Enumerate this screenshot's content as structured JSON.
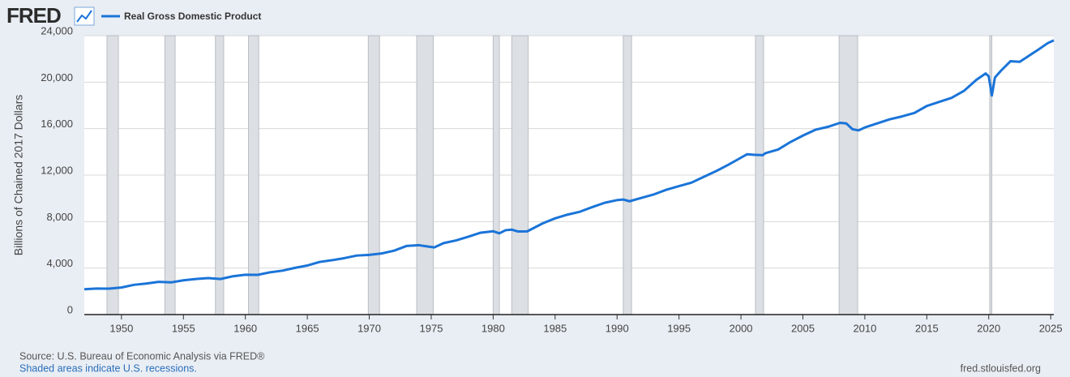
{
  "header": {
    "logo": "FRED"
  },
  "chart_data": {
    "type": "line",
    "y_axis_label": "Billions of Chained 2017 Dollars",
    "x": [
      1947,
      1948,
      1949,
      1950,
      1951,
      1952,
      1953,
      1954,
      1955,
      1956,
      1957,
      1958,
      1959,
      1960,
      1961,
      1962,
      1963,
      1964,
      1965,
      1966,
      1967,
      1968,
      1969,
      1970,
      1971,
      1972,
      1973,
      1974,
      1974.75,
      1975.25,
      1976,
      1977,
      1978,
      1979,
      1980,
      1980.5,
      1981,
      1981.5,
      1982,
      1982.75,
      1983,
      1984,
      1985,
      1986,
      1987,
      1988,
      1989,
      1990,
      1990.5,
      1991,
      1992,
      1993,
      1994,
      1995,
      1996,
      1997,
      1998,
      1999,
      2000,
      2000.5,
      2001,
      2001.75,
      2002,
      2003,
      2004,
      2005,
      2006,
      2007,
      2008,
      2008.5,
      2009,
      2009.5,
      2010,
      2011,
      2012,
      2013,
      2014,
      2015,
      2016,
      2017,
      2018,
      2019,
      2019.75,
      2020,
      2020.25,
      2020.5,
      2021,
      2021.75,
      2022.5,
      2023,
      2024,
      2024.75,
      2025.25
    ],
    "series": [
      {
        "name": "Real Gross Domestic Product",
        "color": "#1a74d8",
        "values": [
          2180,
          2240,
          2230,
          2330,
          2560,
          2670,
          2820,
          2770,
          2950,
          3060,
          3140,
          3060,
          3300,
          3430,
          3420,
          3640,
          3780,
          4020,
          4220,
          4530,
          4680,
          4860,
          5080,
          5140,
          5260,
          5500,
          5900,
          5970,
          5850,
          5780,
          6150,
          6380,
          6700,
          7050,
          7170,
          6990,
          7260,
          7310,
          7150,
          7160,
          7300,
          7850,
          8280,
          8600,
          8850,
          9250,
          9620,
          9850,
          9900,
          9750,
          10050,
          10350,
          10750,
          11050,
          11350,
          11850,
          12350,
          12900,
          13500,
          13800,
          13750,
          13720,
          13900,
          14200,
          14850,
          15400,
          15900,
          16150,
          16500,
          16450,
          15950,
          15850,
          16100,
          16450,
          16800,
          17050,
          17350,
          17950,
          18300,
          18650,
          19250,
          20200,
          20750,
          20500,
          18850,
          20400,
          21000,
          21800,
          21750,
          22100,
          22800,
          23350,
          23600
        ]
      }
    ],
    "recessions": [
      [
        1948.83,
        1949.75
      ],
      [
        1953.5,
        1954.33
      ],
      [
        1957.58,
        1958.25
      ],
      [
        1960.25,
        1961.08
      ],
      [
        1969.92,
        1970.83
      ],
      [
        1973.83,
        1975.17
      ],
      [
        1980.0,
        1980.5
      ],
      [
        1981.5,
        1982.83
      ],
      [
        1990.5,
        1991.17
      ],
      [
        2001.17,
        2001.83
      ],
      [
        2007.92,
        2009.42
      ],
      [
        2020.08,
        2020.25
      ]
    ],
    "xlim": [
      1947,
      2025.25
    ],
    "xticks": [
      1950,
      1955,
      1960,
      1965,
      1970,
      1975,
      1980,
      1985,
      1990,
      1995,
      2000,
      2005,
      2010,
      2015,
      2020,
      2025
    ],
    "ylim": [
      0,
      24000
    ],
    "yticks": [
      0,
      {
        "value": 4000,
        "label": "4,000"
      },
      {
        "value": 8000,
        "label": "8,000"
      },
      {
        "value": 12000,
        "label": "12,000"
      },
      {
        "value": 16000,
        "label": "16,000"
      },
      {
        "value": 20000,
        "label": "20,000"
      },
      {
        "value": 24000,
        "label": "24,000"
      }
    ],
    "grid": true
  },
  "footer": {
    "source": "Source: U.S. Bureau of Economic Analysis via FRED®",
    "note": "Shaded areas indicate U.S. recessions.",
    "site": "fred.stlouisfed.org"
  }
}
